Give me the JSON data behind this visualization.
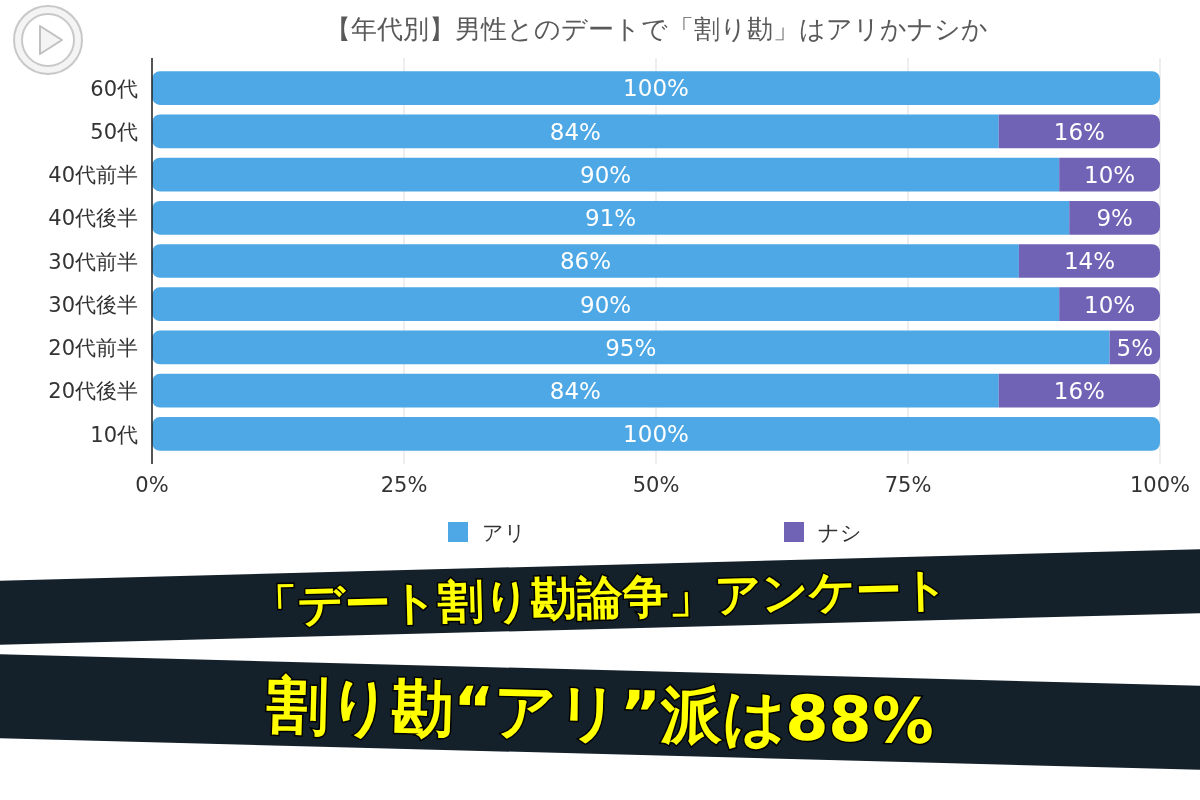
{
  "chart_data": {
    "type": "bar",
    "orientation": "horizontal",
    "stacked": true,
    "title": "【年代別】男性とのデートで「割り勘」はアリかナシか",
    "categories": [
      "60代",
      "50代",
      "40代前半",
      "40代後半",
      "30代前半",
      "30代後半",
      "20代前半",
      "20代後半",
      "10代"
    ],
    "series": [
      {
        "name": "アリ",
        "color": "#4da8e5",
        "values": [
          100,
          84,
          90,
          91,
          86,
          90,
          95,
          84,
          100
        ],
        "value_labels": [
          "100%",
          "84%",
          "90%",
          "91%",
          "86%",
          "90%",
          "95%",
          "84%",
          "100%"
        ]
      },
      {
        "name": "ナシ",
        "color": "#7062b5",
        "values": [
          0,
          16,
          10,
          9,
          14,
          10,
          5,
          16,
          0
        ],
        "value_labels": [
          null,
          "16%",
          "10%",
          "9%",
          "14%",
          "10%",
          "5%",
          "16%",
          null
        ]
      }
    ],
    "xlim": [
      0,
      100
    ],
    "xticks": [
      {
        "value": 0,
        "label": "0%"
      },
      {
        "value": 25,
        "label": "25%"
      },
      {
        "value": 50,
        "label": "50%"
      },
      {
        "value": 75,
        "label": "75%"
      },
      {
        "value": 100,
        "label": "100%"
      }
    ],
    "grid": "x",
    "legend": "bottom",
    "annotations": [
      "「デート割り勘論争」アンケート",
      "割り勘“アリ”派は88%"
    ]
  }
}
